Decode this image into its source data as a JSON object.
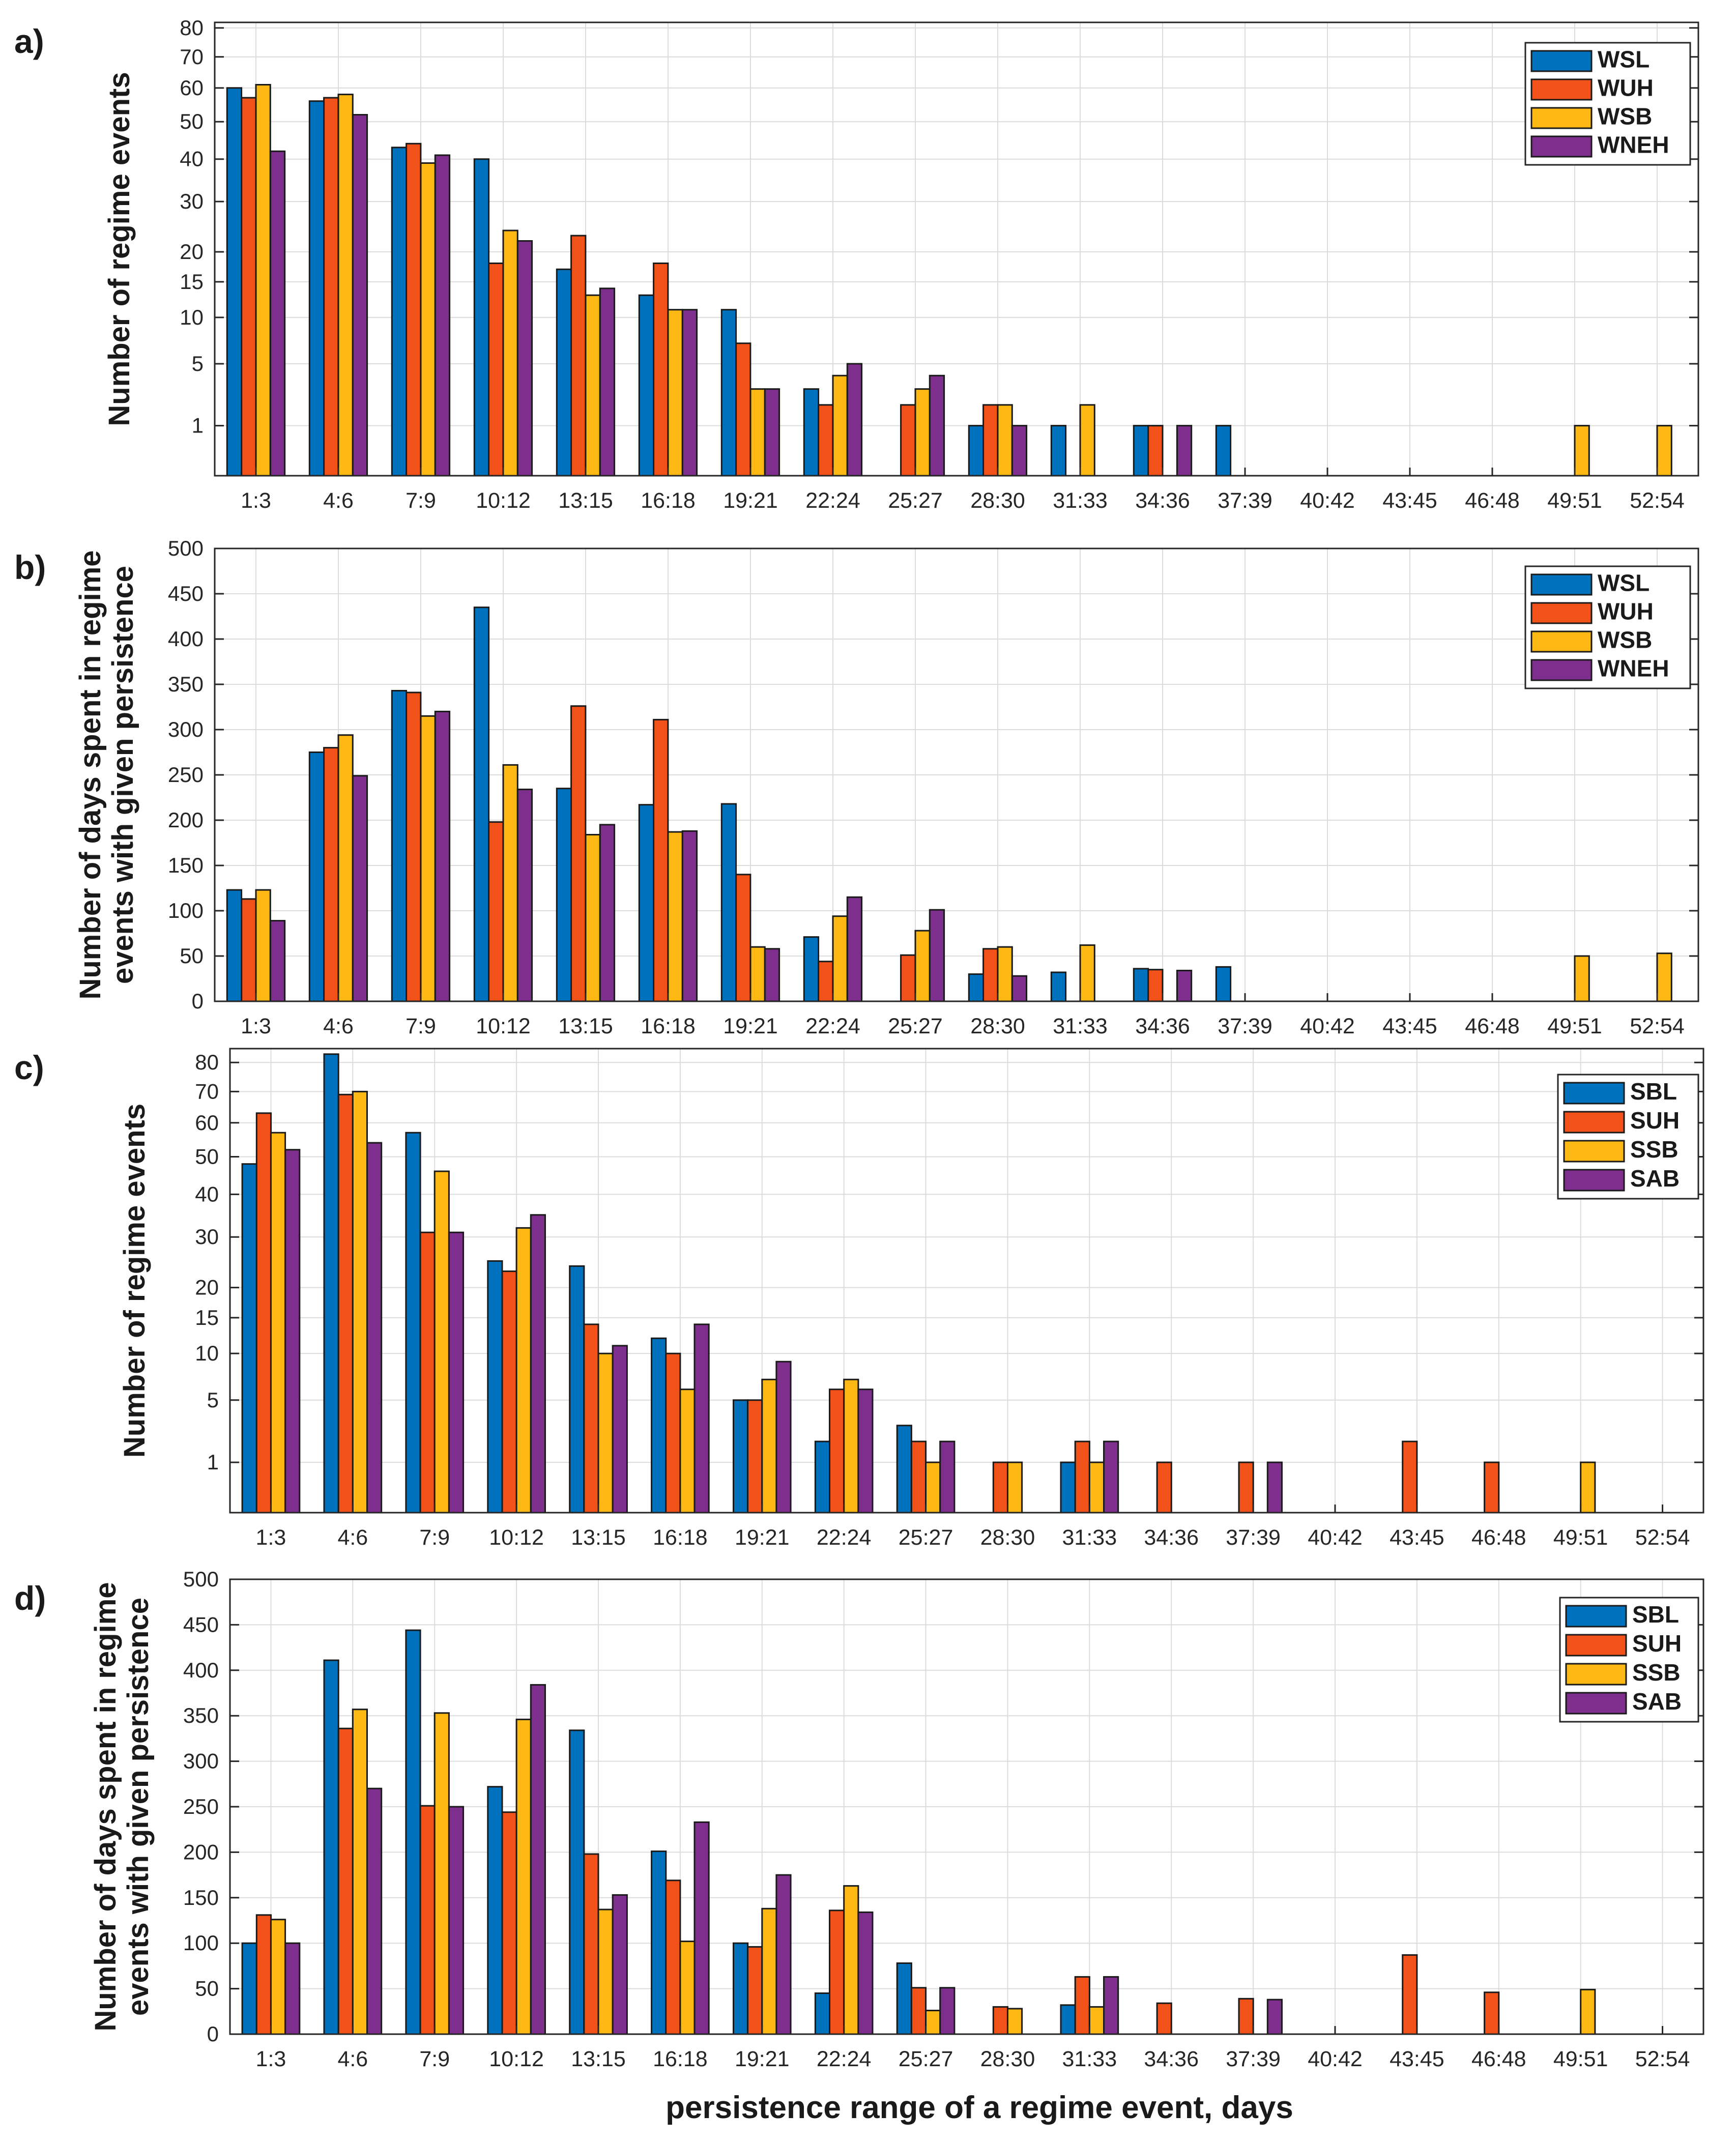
{
  "figure": {
    "xlabel": "persistence range of a regime event, days",
    "categories": [
      "1:3",
      "4:6",
      "7:9",
      "10:12",
      "13:15",
      "16:18",
      "19:21",
      "22:24",
      "25:27",
      "28:30",
      "31:33",
      "34:36",
      "37:39",
      "40:42",
      "43:45",
      "46:48",
      "49:51",
      "52:54"
    ]
  },
  "colors": {
    "blue": "#0072bd",
    "orange": "#f0521a",
    "yellow": "#fdb813",
    "purple": "#7e2f8e",
    "grid": "#dcdcdc",
    "axis": "#262626"
  },
  "chart_data": [
    {
      "panel_label": "a)",
      "type": "bar",
      "ylabel": [
        "Number of regime events"
      ],
      "y_ticks": [
        1,
        5,
        10,
        15,
        20,
        30,
        40,
        50,
        60,
        70,
        80
      ],
      "ylim": [
        0,
        82
      ],
      "y_scale": "sqrt",
      "legend_position": "top-right",
      "series": [
        {
          "name": "WSL",
          "values": [
            60,
            56,
            43,
            40,
            17,
            13,
            11,
            3,
            0,
            1,
            1,
            1,
            1,
            0,
            0,
            0,
            0,
            0
          ]
        },
        {
          "name": "WUH",
          "values": [
            57,
            57,
            44,
            18,
            23,
            18,
            7,
            2,
            2,
            2,
            0,
            1,
            0,
            0,
            0,
            0,
            0,
            0
          ]
        },
        {
          "name": "WSB",
          "values": [
            61,
            58,
            39,
            24,
            13,
            11,
            3,
            4,
            3,
            2,
            2,
            0,
            0,
            0,
            0,
            0,
            1,
            1
          ]
        },
        {
          "name": "WNEH",
          "values": [
            42,
            52,
            41,
            22,
            14,
            11,
            3,
            5,
            4,
            1,
            0,
            1,
            0,
            0,
            0,
            0,
            0,
            0
          ]
        }
      ]
    },
    {
      "panel_label": "b)",
      "type": "bar",
      "ylabel": [
        "Number of days spent in regime",
        "events with given persistence"
      ],
      "y_ticks": [
        0,
        50,
        100,
        150,
        200,
        250,
        300,
        350,
        400,
        450,
        500
      ],
      "ylim": [
        0,
        500
      ],
      "y_scale": "linear",
      "legend_position": "top-right",
      "series": [
        {
          "name": "WSL",
          "values": [
            123,
            275,
            343,
            435,
            235,
            217,
            218,
            71,
            0,
            30,
            32,
            36,
            38,
            0,
            0,
            0,
            0,
            0
          ]
        },
        {
          "name": "WUH",
          "values": [
            113,
            280,
            341,
            198,
            326,
            311,
            140,
            44,
            51,
            58,
            0,
            35,
            0,
            0,
            0,
            0,
            0,
            0
          ]
        },
        {
          "name": "WSB",
          "values": [
            123,
            294,
            315,
            261,
            184,
            187,
            60,
            94,
            78,
            60,
            62,
            0,
            0,
            0,
            0,
            0,
            50,
            53
          ]
        },
        {
          "name": "WNEH",
          "values": [
            89,
            249,
            320,
            234,
            195,
            188,
            58,
            115,
            101,
            28,
            0,
            34,
            0,
            0,
            0,
            0,
            0,
            0
          ]
        }
      ]
    },
    {
      "panel_label": "c)",
      "type": "bar",
      "ylabel": [
        "Number of regime events"
      ],
      "y_ticks": [
        1,
        5,
        10,
        15,
        20,
        30,
        40,
        50,
        60,
        70,
        80
      ],
      "ylim": [
        0,
        85
      ],
      "y_scale": "sqrt",
      "legend_position": "top-right",
      "series": [
        {
          "name": "SBL",
          "values": [
            48,
            83,
            57,
            25,
            24,
            12,
            5,
            2,
            3,
            0,
            1,
            0,
            0,
            0,
            0,
            0,
            0,
            0
          ]
        },
        {
          "name": "SUH",
          "values": [
            63,
            69,
            31,
            23,
            14,
            10,
            5,
            6,
            2,
            1,
            2,
            1,
            1,
            0,
            2,
            1,
            0,
            0
          ]
        },
        {
          "name": "SSB",
          "values": [
            57,
            70,
            46,
            32,
            10,
            6,
            7,
            7,
            1,
            1,
            1,
            0,
            0,
            0,
            0,
            0,
            1,
            0
          ]
        },
        {
          "name": "SAB",
          "values": [
            52,
            54,
            31,
            35,
            11,
            14,
            9,
            6,
            2,
            0,
            2,
            0,
            1,
            0,
            0,
            0,
            0,
            0
          ]
        }
      ]
    },
    {
      "panel_label": "d)",
      "type": "bar",
      "ylabel": [
        "Number of days spent in regime",
        "events with given persistence"
      ],
      "y_ticks": [
        0,
        50,
        100,
        150,
        200,
        250,
        300,
        350,
        400,
        450,
        500
      ],
      "ylim": [
        0,
        500
      ],
      "y_scale": "linear",
      "legend_position": "top-right",
      "series": [
        {
          "name": "SBL",
          "values": [
            100,
            411,
            444,
            272,
            334,
            201,
            100,
            45,
            78,
            0,
            32,
            0,
            0,
            0,
            0,
            0,
            0,
            0
          ]
        },
        {
          "name": "SUH",
          "values": [
            131,
            336,
            251,
            244,
            198,
            169,
            96,
            136,
            51,
            30,
            63,
            34,
            39,
            0,
            87,
            46,
            0,
            0
          ]
        },
        {
          "name": "SSB",
          "values": [
            126,
            357,
            353,
            346,
            137,
            102,
            138,
            163,
            26,
            28,
            30,
            0,
            0,
            0,
            0,
            0,
            49,
            0
          ]
        },
        {
          "name": "SAB",
          "values": [
            100,
            270,
            250,
            384,
            153,
            233,
            175,
            134,
            51,
            0,
            63,
            0,
            38,
            0,
            0,
            0,
            0,
            0
          ]
        }
      ]
    }
  ]
}
